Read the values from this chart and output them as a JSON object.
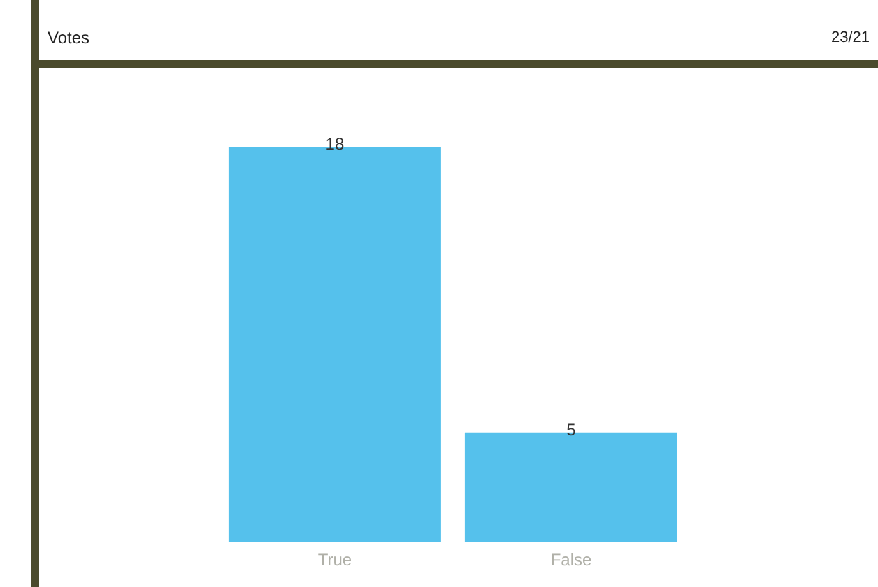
{
  "chart_data": {
    "type": "bar",
    "title": "Votes",
    "annotations": [
      "23/21"
    ],
    "categories": [
      "True",
      "False"
    ],
    "values": [
      18,
      5
    ],
    "color": "#55c1ec",
    "data_labels": true
  }
}
